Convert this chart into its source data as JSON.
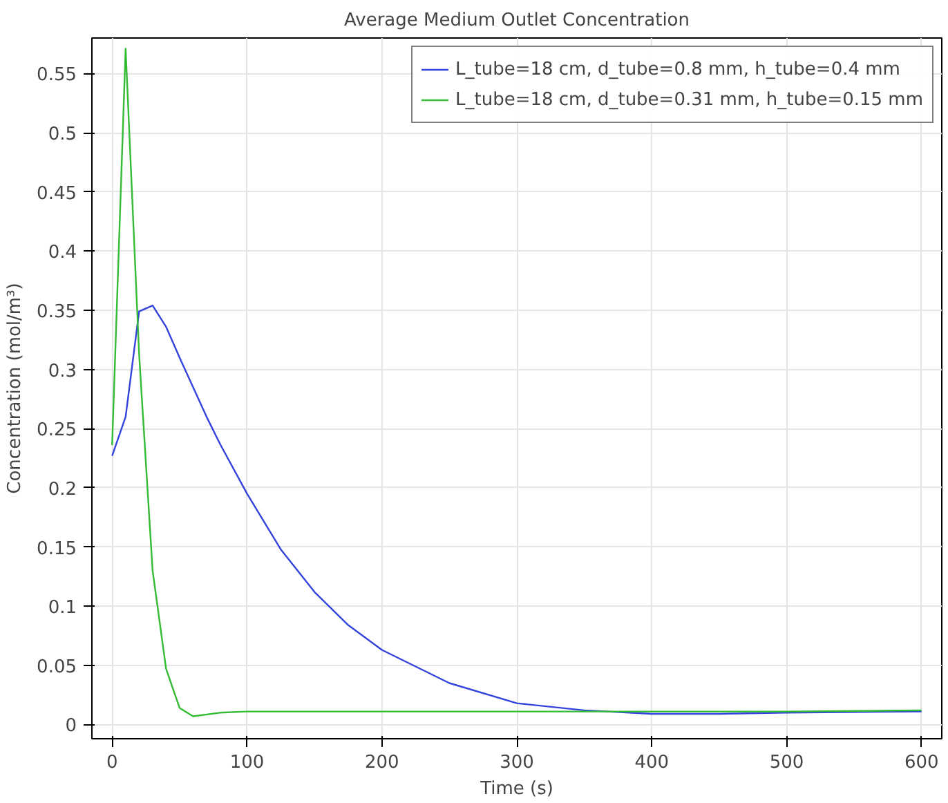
{
  "chart_data": {
    "type": "line",
    "title": "Average Medium Outlet Concentration",
    "xlabel": "Time (s)",
    "ylabel": "Concentration (mol/m³)",
    "xlim": [
      -15,
      615
    ],
    "ylim": [
      -0.012,
      0.58
    ],
    "xticks": [
      0,
      100,
      200,
      300,
      400,
      500,
      600
    ],
    "yticks": [
      0,
      0.05,
      0.1,
      0.15,
      0.2,
      0.25,
      0.3,
      0.35,
      0.4,
      0.45,
      0.5,
      0.55
    ],
    "grid": true,
    "legend": "top right",
    "line_style": "solid",
    "marker": "none",
    "series": [
      {
        "name": "L_tube=18 cm, d_tube=0.8 mm, h_tube=0.4 mm",
        "color": "#3344dd",
        "x": [
          0,
          10,
          20,
          30,
          40,
          50,
          60,
          70,
          80,
          100,
          125,
          150,
          175,
          200,
          250,
          300,
          350,
          400,
          450,
          500,
          600
        ],
        "values": [
          0.227,
          0.26,
          0.349,
          0.354,
          0.336,
          0.31,
          0.285,
          0.26,
          0.237,
          0.195,
          0.148,
          0.112,
          0.084,
          0.063,
          0.035,
          0.018,
          0.012,
          0.009,
          0.009,
          0.01,
          0.011
        ]
      },
      {
        "name": "L_tube=18 cm, d_tube=0.31 mm, h_tube=0.15 mm",
        "color": "#33bb33",
        "x": [
          0,
          10,
          20,
          30,
          40,
          50,
          60,
          80,
          100,
          200,
          300,
          400,
          500,
          600
        ],
        "values": [
          0.236,
          0.571,
          0.313,
          0.13,
          0.047,
          0.014,
          0.007,
          0.01,
          0.011,
          0.011,
          0.011,
          0.011,
          0.011,
          0.012
        ]
      }
    ]
  }
}
